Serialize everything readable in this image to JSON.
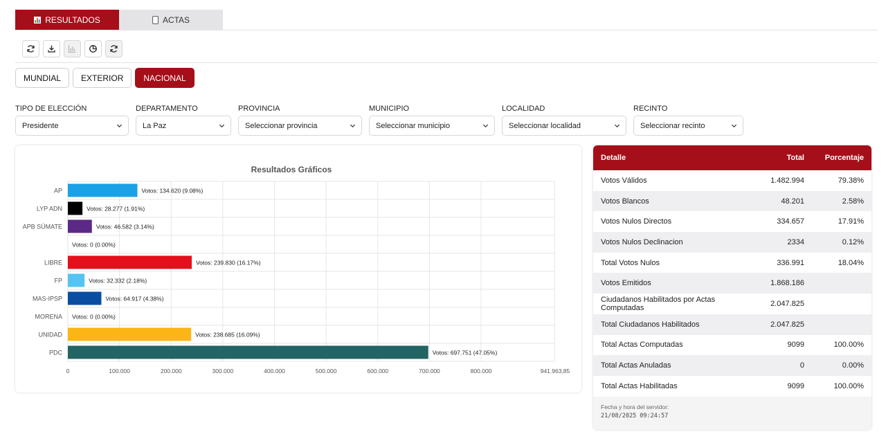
{
  "top_tabs": [
    {
      "label": "RESULTADOS",
      "icon": "bar-chart-icon"
    },
    {
      "label": "ACTAS",
      "icon": "document-icon"
    }
  ],
  "toolbar": {
    "buttons": [
      "refresh-icon",
      "download-icon",
      "bar-chart-icon",
      "pie-chart-icon",
      "refresh-icon"
    ]
  },
  "scope": {
    "buttons": [
      "MUNDIAL",
      "EXTERIOR",
      "NACIONAL"
    ],
    "selected": "NACIONAL"
  },
  "filters": [
    {
      "label": "TIPO DE ELECCIÓN",
      "value": "Presidente"
    },
    {
      "label": "DEPARTAMENTO",
      "value": "La Paz"
    },
    {
      "label": "PROVINCIA",
      "value": "Seleccionar provincia"
    },
    {
      "label": "MUNICIPIO",
      "value": "Seleccionar municipio"
    },
    {
      "label": "LOCALIDAD",
      "value": "Seleccionar localidad"
    },
    {
      "label": "RECINTO",
      "value": "Seleccionar recinto"
    }
  ],
  "chart_data": {
    "type": "bar",
    "orientation": "horizontal",
    "title": "Resultados Gráficos",
    "categories": [
      "AP",
      "LYP ADN",
      "APB SÚMATE",
      "",
      "LIBRE",
      "FP",
      "MAS-IPSP",
      "MORENA",
      "UNIDAD",
      "PDC"
    ],
    "values": [
      134620,
      28277,
      46582,
      0,
      239830,
      32332,
      64917,
      0,
      238685,
      697751
    ],
    "labels": [
      "Votos: 134.620 (9.08%)",
      "Votos: 28.277 (1.91%)",
      "Votos: 46.582 (3.14%)",
      "Votos: 0 (0.00%)",
      "Votos: 239.830 (16.17%)",
      "Votos: 32.332 (2.18%)",
      "Votos: 64.917 (4.38%)",
      "Votos: 0 (0.00%)",
      "Votos: 238.685 (16.09%)",
      "Votos: 697.751 (47.05%)"
    ],
    "colors": [
      "#1aa1e6",
      "#000000",
      "#5b2a86",
      "#999999",
      "#e3101c",
      "#56c4f2",
      "#0a4ea1",
      "#7a1c2d",
      "#fbb615",
      "#236464"
    ],
    "xlim": [
      0,
      941963.85
    ],
    "xticks": [
      0,
      100000,
      200000,
      300000,
      400000,
      500000,
      600000,
      700000,
      800000
    ],
    "xtick_labels": [
      "0",
      "100.000",
      "200.000",
      "300.000",
      "400.000",
      "500.000",
      "600.000",
      "700.000",
      "800.000"
    ],
    "xmax_label": "941.963,85",
    "grid": true,
    "legend": "none"
  },
  "table": {
    "headers": [
      "Detalle",
      "Total",
      "Porcentaje"
    ],
    "rows": [
      [
        "Votos Válidos",
        "1.482.994",
        "79.38%"
      ],
      [
        "Votos Blancos",
        "48.201",
        "2.58%"
      ],
      [
        "Votos Nulos Directos",
        "334.657",
        "17.91%"
      ],
      [
        "Votos Nulos Declinacion",
        "2334",
        "0.12%"
      ],
      [
        "Total Votos Nulos",
        "336.991",
        "18.04%"
      ],
      [
        "Votos Emitidos",
        "1.868.186",
        ""
      ],
      [
        "Ciudadanos Habilitados por Actas Computadas",
        "2.047.825",
        ""
      ],
      [
        "Total Ciudadanos Habilitados",
        "2.047.825",
        ""
      ],
      [
        "Total Actas Computadas",
        "9099",
        "100.00%"
      ],
      [
        "Total Actas Anuladas",
        "0",
        "0.00%"
      ],
      [
        "Total Actas Habilitadas",
        "9099",
        "100.00%"
      ]
    ],
    "footer_label": "Fecha y hora del servidor:",
    "footer_time": "21/08/2025 09:24:57"
  },
  "colors": {
    "accent": "#a50f1a"
  }
}
